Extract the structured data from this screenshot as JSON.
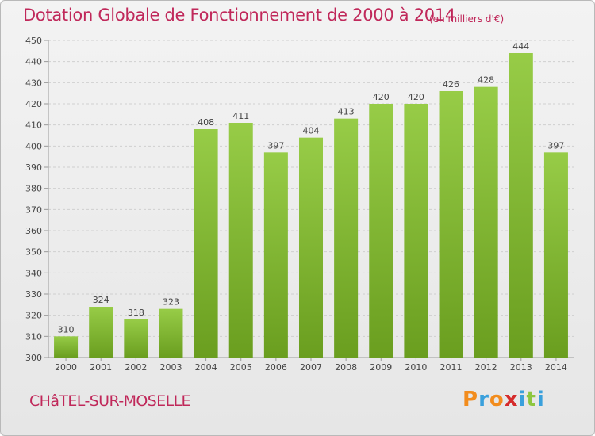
{
  "chart_data": {
    "type": "bar",
    "title": "Dotation Globale de Fonctionnement de 2000 à 2014",
    "unit_note": "(en milliers d'€)",
    "categories": [
      "2000",
      "2001",
      "2002",
      "2003",
      "2004",
      "2005",
      "2006",
      "2007",
      "2008",
      "2009",
      "2010",
      "2011",
      "2012",
      "2013",
      "2014"
    ],
    "values": [
      310,
      324,
      318,
      323,
      408,
      411,
      397,
      404,
      413,
      420,
      420,
      426,
      428,
      444,
      397
    ],
    "ylim": [
      300,
      450
    ],
    "yticks": [
      300,
      310,
      320,
      330,
      340,
      350,
      360,
      370,
      380,
      390,
      400,
      410,
      420,
      430,
      440,
      450
    ],
    "grid": true,
    "bar_color_top": "#97cc47",
    "bar_color_bottom": "#6a9e1f"
  },
  "location": "CHâTEL-SUR-MOSELLE",
  "brand": {
    "letters": [
      "P",
      "r",
      "o",
      "x",
      "i",
      "t",
      "i"
    ],
    "colors": [
      "#f28c1d",
      "#3aa0dc",
      "#f28c1d",
      "#d52b2b",
      "#3aa0dc",
      "#8dc63f",
      "#3aa0dc"
    ]
  }
}
